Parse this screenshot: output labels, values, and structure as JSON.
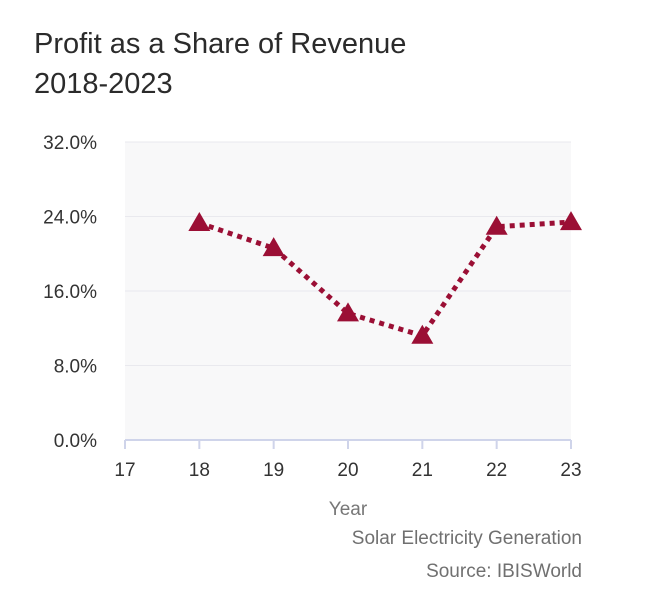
{
  "title": "Profit as a Share of Revenue 2018-2023",
  "subtitle": "Solar Electricity Generation",
  "source": "Source: IBISWorld",
  "chart_data": {
    "type": "line",
    "title": "Profit as a Share of Revenue 2018-2023",
    "xlabel": "Year",
    "ylabel": "",
    "x_ticks": [
      "17",
      "18",
      "19",
      "20",
      "21",
      "22",
      "23"
    ],
    "y_ticks": [
      "0.0%",
      "8.0%",
      "16.0%",
      "24.0%",
      "32.0%"
    ],
    "xlim": [
      17,
      23
    ],
    "ylim": [
      0,
      32
    ],
    "grid": true,
    "series": [
      {
        "x": [
          18,
          19,
          20,
          21,
          22,
          23
        ],
        "values": [
          23.3,
          20.6,
          13.6,
          11.2,
          22.9,
          23.4
        ],
        "color": "#9b0f35",
        "marker": "triangle",
        "line_style": "dotted"
      }
    ],
    "plot_background": "#f8f8f9",
    "axis_color": "#cfd4ea"
  }
}
